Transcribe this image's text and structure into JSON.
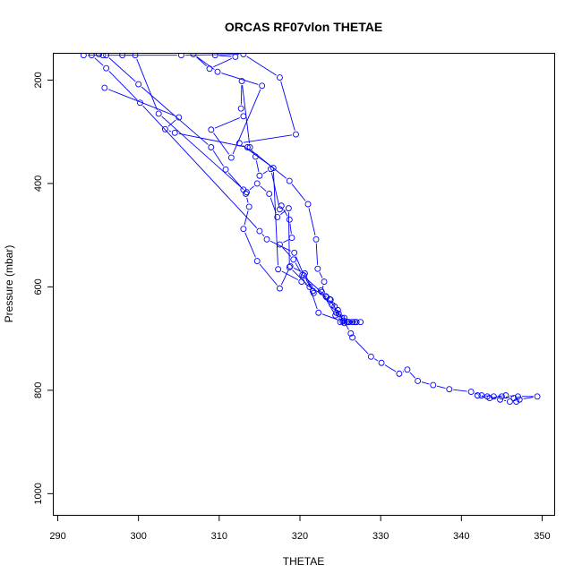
{
  "chart_data": {
    "type": "scatter",
    "title": "ORCAS RF07vlon THETAE",
    "xlabel": "THETAE",
    "ylabel": "Pressure (mbar)",
    "xlim": [
      289.5,
      351.5
    ],
    "ylim": [
      1041,
      149
    ],
    "y_reversed": true,
    "x_ticks": [
      "290",
      "300",
      "310",
      "320",
      "330",
      "340",
      "350"
    ],
    "y_ticks": [
      "200",
      "400",
      "600",
      "800",
      "1000"
    ],
    "grid": false,
    "legend": "none",
    "color": "#0000ff",
    "series": [
      {
        "style": "line+circle",
        "points": [
          [
            295.8,
            215
          ],
          [
            305,
            272
          ],
          [
            303.3,
            295
          ],
          [
            304.5,
            302
          ],
          [
            313.5,
            330
          ],
          [
            318.7,
            395
          ],
          [
            321,
            440
          ],
          [
            322,
            508
          ],
          [
            322.2,
            565
          ],
          [
            323,
            590
          ],
          [
            322.7,
            610
          ],
          [
            324.4,
            655
          ],
          [
            324.7,
            645
          ],
          [
            325.4,
            665
          ],
          [
            326.3,
            690
          ],
          [
            326.5,
            698
          ],
          [
            328.8,
            735
          ],
          [
            330.1,
            747
          ],
          [
            332.3,
            768
          ],
          [
            333.3,
            760
          ],
          [
            334.6,
            782
          ],
          [
            336.5,
            790
          ],
          [
            338.5,
            798
          ],
          [
            341.2,
            803
          ],
          [
            342.5,
            810
          ],
          [
            344,
            812
          ],
          [
            345.5,
            810
          ],
          [
            347,
            812
          ],
          [
            349.4,
            812
          ],
          [
            347.2,
            818
          ],
          [
            346,
            822
          ],
          [
            344.8,
            818
          ],
          [
            343.2,
            812
          ],
          [
            342,
            810
          ],
          [
            343.5,
            815
          ],
          [
            345,
            812
          ],
          [
            346.5,
            815
          ],
          [
            346.8,
            822
          ]
        ]
      },
      {
        "style": "line+circle",
        "points": [
          [
            309.5,
            152
          ],
          [
            312,
            155
          ],
          [
            308.8,
            178
          ],
          [
            306.8,
            150
          ],
          [
            309.8,
            184
          ],
          [
            315.3,
            211
          ],
          [
            311.5,
            350
          ],
          [
            309,
            296
          ],
          [
            313,
            270
          ],
          [
            312.7,
            255
          ],
          [
            312.8,
            202
          ],
          [
            313.8,
            330
          ],
          [
            314.5,
            348
          ],
          [
            315,
            385
          ],
          [
            316.4,
            372
          ],
          [
            317.5,
            450
          ],
          [
            317.7,
            443
          ],
          [
            318.7,
            470
          ],
          [
            319,
            505
          ],
          [
            317.5,
            518
          ],
          [
            319.2,
            547
          ],
          [
            320.3,
            577
          ],
          [
            323.2,
            618
          ],
          [
            323.8,
            625
          ],
          [
            324,
            635
          ],
          [
            324.5,
            650
          ],
          [
            325.2,
            660
          ],
          [
            325.8,
            668
          ],
          [
            326.5,
            668
          ],
          [
            327,
            668
          ],
          [
            327.5,
            668
          ],
          [
            326,
            668
          ],
          [
            325,
            668
          ],
          [
            326.8,
            668
          ]
        ]
      },
      {
        "style": "line+circle",
        "points": [
          [
            293.2,
            152
          ],
          [
            296,
            152
          ],
          [
            300,
            208
          ],
          [
            309,
            330
          ],
          [
            310.8,
            373
          ],
          [
            313,
            412
          ],
          [
            313.3,
            420
          ],
          [
            313.7,
            445
          ],
          [
            313,
            488
          ],
          [
            314.7,
            550
          ],
          [
            317.5,
            603
          ],
          [
            318.8,
            560
          ],
          [
            320.6,
            574
          ],
          [
            321.6,
            608
          ],
          [
            322.6,
            607
          ],
          [
            323.3,
            620
          ],
          [
            324.3,
            638
          ],
          [
            324.8,
            652
          ],
          [
            325.5,
            660
          ],
          [
            326.1,
            668
          ]
        ]
      },
      {
        "style": "line+circle",
        "points": [
          [
            294.2,
            152
          ],
          [
            296,
            177
          ],
          [
            300.2,
            244
          ],
          [
            315,
            492
          ],
          [
            315.9,
            508
          ],
          [
            319.3,
            534
          ],
          [
            320.5,
            578
          ],
          [
            321.7,
            612
          ]
        ]
      },
      {
        "style": "line+circle",
        "points": [
          [
            295.1,
            150
          ],
          [
            295.6,
            152
          ],
          [
            299.6,
            152
          ],
          [
            302.5,
            265
          ],
          [
            313.4,
            417
          ],
          [
            314.7,
            400
          ],
          [
            316.2,
            420
          ],
          [
            317.2,
            465
          ],
          [
            318.6,
            448
          ],
          [
            318.7,
            562
          ],
          [
            321.2,
            600
          ],
          [
            322.3,
            650
          ],
          [
            325.3,
            667
          ]
        ]
      },
      {
        "style": "line+circle",
        "points": [
          [
            298,
            152
          ],
          [
            305.3,
            152
          ],
          [
            313,
            150
          ],
          [
            317.5,
            195
          ],
          [
            319.5,
            305
          ],
          [
            312.5,
            322
          ],
          [
            316.7,
            370
          ],
          [
            317.3,
            566
          ],
          [
            320.2,
            590
          ],
          [
            323.7,
            624
          ],
          [
            325.5,
            670
          ]
        ]
      }
    ]
  }
}
